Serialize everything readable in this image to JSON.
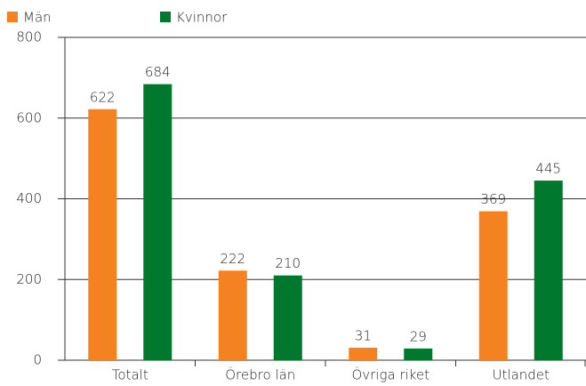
{
  "chart_data": {
    "type": "bar",
    "categories": [
      "Totalt",
      "Örebro län",
      "Övriga riket",
      "Utlandet"
    ],
    "series": [
      {
        "name": "Män",
        "color": "#f58220",
        "values": [
          622,
          222,
          31,
          369
        ]
      },
      {
        "name": "Kvinnor",
        "color": "#00782d",
        "values": [
          684,
          210,
          29,
          445
        ]
      }
    ],
    "ylim": [
      0,
      800
    ],
    "yticks": [
      0,
      200,
      400,
      600,
      800
    ],
    "grid": true,
    "legend": "top-left"
  }
}
